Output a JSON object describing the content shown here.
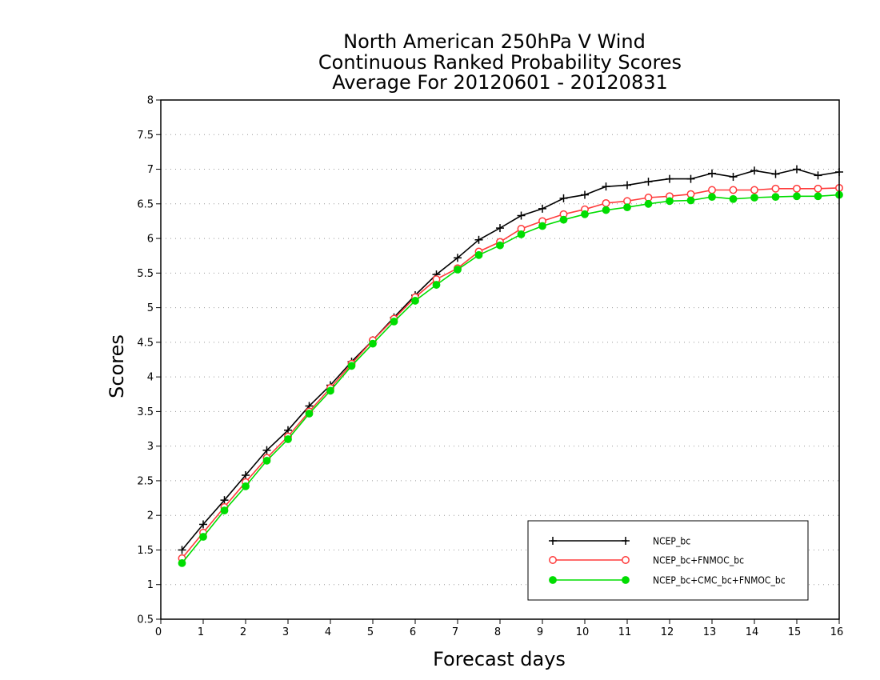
{
  "chart_data": {
    "type": "line",
    "title_lines": [
      "North American 250hPa V Wind",
      "Continuous Ranked Probability Scores",
      "Average For 20120601 - 20120831"
    ],
    "xlabel": "Forecast days",
    "ylabel": "Scores",
    "xlim": [
      0,
      16
    ],
    "ylim": [
      0.5,
      8
    ],
    "x_ticks": [
      0,
      1,
      2,
      3,
      4,
      5,
      6,
      7,
      8,
      9,
      10,
      11,
      12,
      13,
      14,
      15,
      16
    ],
    "y_ticks": [
      0.5,
      1,
      1.5,
      2,
      2.5,
      3,
      3.5,
      4,
      4.5,
      5,
      5.5,
      6,
      6.5,
      7,
      7.5,
      8
    ],
    "y_grid": true,
    "legend_position": "bottom-right",
    "x": [
      0.5,
      1,
      1.5,
      2,
      2.5,
      3,
      3.5,
      4,
      4.5,
      5,
      5.5,
      6,
      6.5,
      7,
      7.5,
      8,
      8.5,
      9,
      9.5,
      10,
      10.5,
      11,
      11.5,
      12,
      12.5,
      13,
      13.5,
      14,
      14.5,
      15,
      15.5,
      16
    ],
    "series": [
      {
        "name": "NCEP_bc",
        "color": "#000000",
        "marker": "plus",
        "values": [
          1.5,
          1.87,
          2.22,
          2.58,
          2.94,
          3.23,
          3.58,
          3.88,
          4.22,
          4.53,
          4.86,
          5.18,
          5.48,
          5.72,
          5.98,
          6.15,
          6.33,
          6.43,
          6.58,
          6.63,
          6.75,
          6.77,
          6.82,
          6.86,
          6.86,
          6.94,
          6.89,
          6.98,
          6.93,
          7.0,
          6.91,
          6.96
        ]
      },
      {
        "name": "NCEP_bc+FNMOC_bc",
        "color": "#ff3b3b",
        "marker": "open-circle",
        "values": [
          1.38,
          1.75,
          2.12,
          2.48,
          2.83,
          3.14,
          3.5,
          3.84,
          4.19,
          4.53,
          4.84,
          5.15,
          5.41,
          5.57,
          5.81,
          5.95,
          6.14,
          6.25,
          6.35,
          6.42,
          6.51,
          6.54,
          6.59,
          6.61,
          6.64,
          6.7,
          6.7,
          6.7,
          6.72,
          6.72,
          6.72,
          6.73
        ]
      },
      {
        "name": "NCEP_bc+CMC_bc+FNMOC_bc",
        "color": "#00dd00",
        "marker": "filled-circle",
        "values": [
          1.31,
          1.69,
          2.07,
          2.42,
          2.79,
          3.1,
          3.47,
          3.8,
          4.16,
          4.48,
          4.8,
          5.1,
          5.33,
          5.55,
          5.76,
          5.9,
          6.06,
          6.18,
          6.27,
          6.35,
          6.41,
          6.45,
          6.5,
          6.54,
          6.55,
          6.6,
          6.57,
          6.59,
          6.6,
          6.61,
          6.61,
          6.63
        ]
      }
    ]
  }
}
